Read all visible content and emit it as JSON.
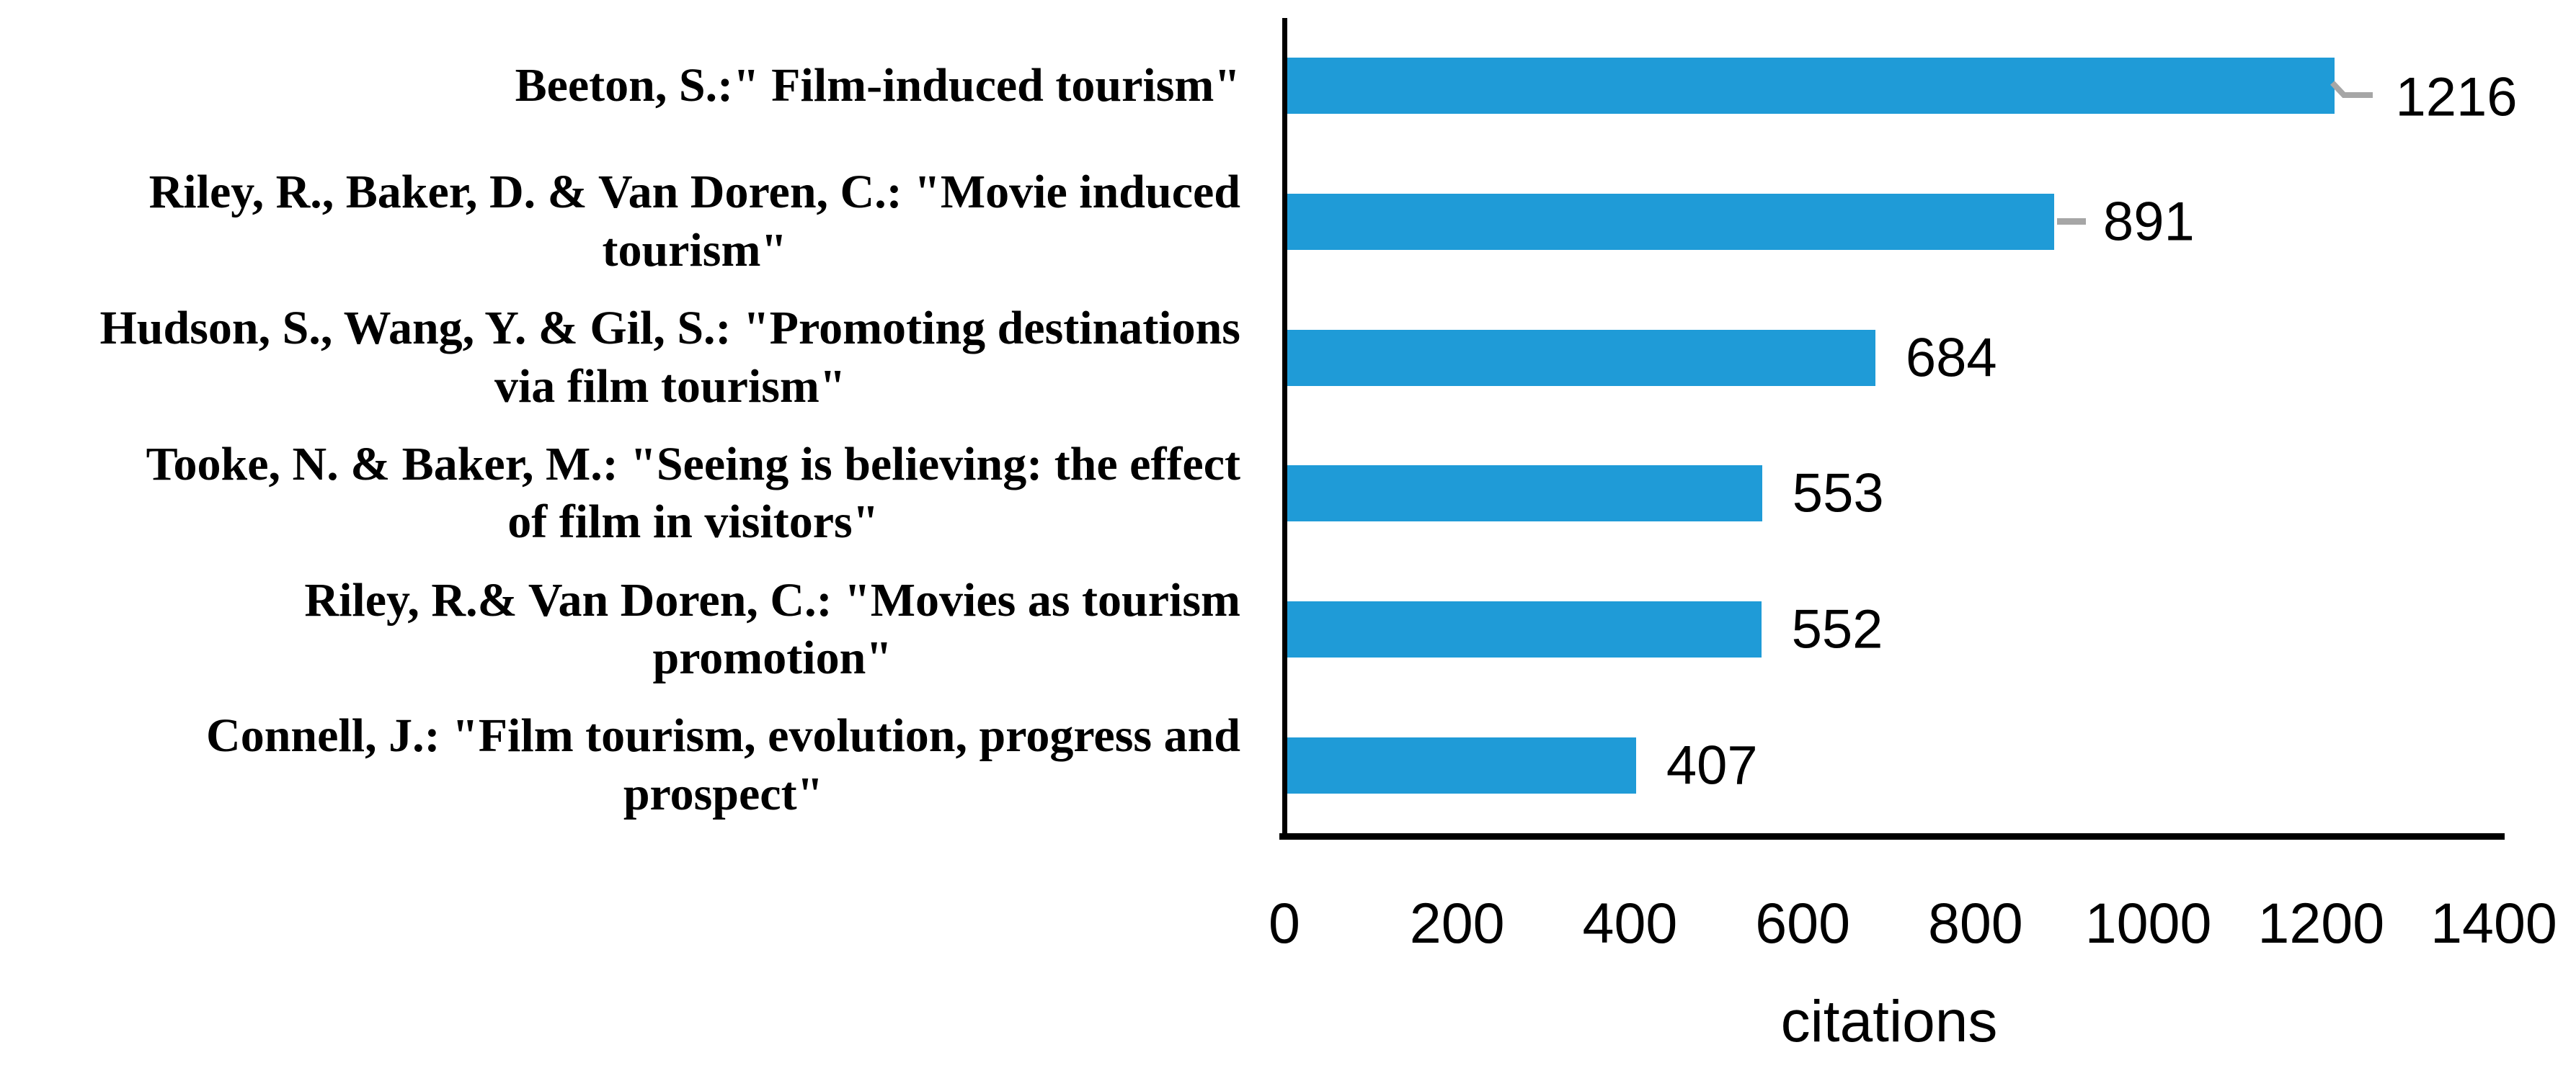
{
  "chart_data": {
    "type": "bar",
    "orientation": "horizontal",
    "title": "",
    "xlabel": "citations",
    "ylabel": "",
    "categories": [
      "Beeton, S.:\" Film-induced tourism\"",
      "Riley, R., Baker, D. & Van Doren, C.: \"Movie induced\ntourism\"",
      "Hudson, S., Wang, Y. & Gil, S.: \"Promoting destinations\nvia film tourism\"",
      "Tooke, N. & Baker, M.: \"Seeing is believing: the effect\nof film in visitors\"",
      "Riley, R.& Van Doren, C.: \"Movies as tourism\npromotion\"",
      "Connell, J.: \"Film tourism, evolution, progress and\nprospect\""
    ],
    "values": [
      1216,
      891,
      684,
      553,
      552,
      407
    ],
    "data_labels": [
      "1216",
      "891",
      "684",
      "553",
      "552",
      "407"
    ],
    "x_ticks": [
      "0",
      "200",
      "400",
      "600",
      "800",
      "1000",
      "1200",
      "1400"
    ],
    "xlim": [
      0,
      1400
    ],
    "grid": "off",
    "legend": "none",
    "leader_lines": [
      "elbow",
      "line",
      "none",
      "none",
      "none",
      "none"
    ],
    "colors": {
      "bar": "#1F9BD7",
      "leader": "#A6A6A6",
      "axis": "#000000",
      "text": "#000000"
    }
  }
}
